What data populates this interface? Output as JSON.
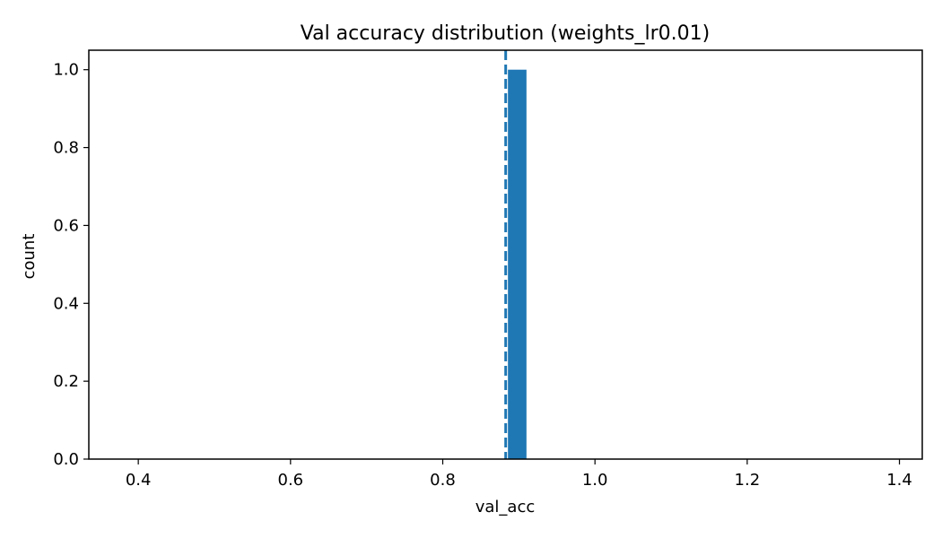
{
  "chart_data": {
    "type": "bar",
    "title": "Val accuracy distribution (weights_lr0.01)",
    "xlabel": "val_acc",
    "ylabel": "count",
    "xlim": [
      0.335,
      1.43
    ],
    "ylim": [
      0,
      1.05
    ],
    "xticks": [
      0.4,
      0.6,
      0.8,
      1.0,
      1.2,
      1.4
    ],
    "xtick_labels": [
      "0.4",
      "0.6",
      "0.8",
      "1.0",
      "1.2",
      "1.4"
    ],
    "yticks": [
      0.0,
      0.2,
      0.4,
      0.6,
      0.8,
      1.0
    ],
    "ytick_labels": [
      "0.0",
      "0.2",
      "0.4",
      "0.6",
      "0.8",
      "1.0"
    ],
    "bins": [
      {
        "x0": 0.882,
        "x1": 0.91,
        "count": 1
      }
    ],
    "mean_line": {
      "x": 0.8827,
      "style": "dashed"
    },
    "grid": false,
    "colors": {
      "bar": "#1f77b4",
      "line": "#1f77b4"
    }
  }
}
